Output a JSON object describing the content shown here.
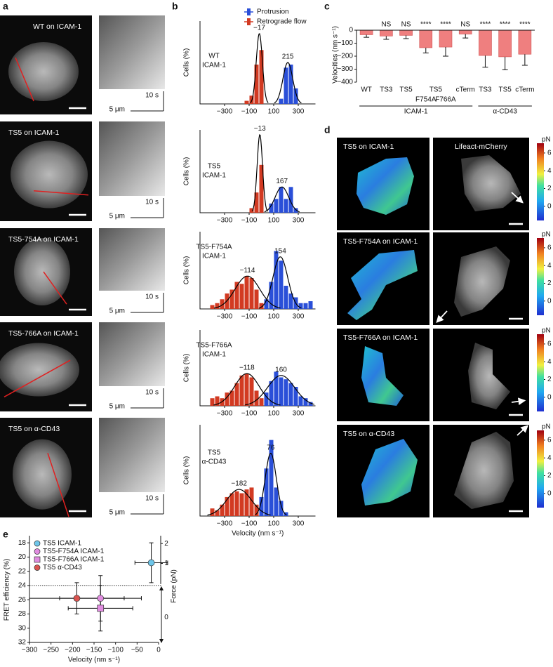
{
  "panel_labels": [
    "a",
    "b",
    "c",
    "d",
    "e"
  ],
  "panel_a": {
    "rows": [
      {
        "label": "WT on ICAM-1",
        "time_scale": "10 s",
        "length_scale": "5 μm"
      },
      {
        "label": "TS5 on ICAM-1",
        "time_scale": "10 s",
        "length_scale": "5 μm"
      },
      {
        "label": "TS5-754A on ICAM-1",
        "time_scale": "10 s",
        "length_scale": "5 μm"
      },
      {
        "label": "TS5-766A on ICAM-1",
        "time_scale": "10 s",
        "length_scale": "5 μm"
      },
      {
        "label": "TS5 on α-CD43",
        "time_scale": "10 s",
        "length_scale": "5 μm"
      }
    ]
  },
  "panel_d": {
    "right_label": "Lifeact-mCherry",
    "rows": [
      {
        "label": "TS5 on ICAM-1"
      },
      {
        "label": "TS5-F754A on ICAM-1"
      },
      {
        "label": "TS5-F766A on ICAM-1"
      },
      {
        "label": "TS5 on α-CD43"
      }
    ],
    "colorbar": {
      "unit": "pN",
      "lim": [
        -1.6,
        7.1
      ],
      "ticks": [
        6,
        4,
        2,
        0
      ]
    }
  },
  "chart_data": [
    {
      "type": "histogram",
      "label_lines": [
        "WT",
        "ICAM-1"
      ],
      "ylabel": "Cells (%)",
      "bins": [
        -460,
        -420,
        -380,
        -340,
        -300,
        -260,
        -220,
        -180,
        -140,
        -100,
        -60,
        -20,
        20,
        60,
        100,
        140,
        180,
        220,
        260,
        300,
        340,
        380,
        420
      ],
      "series": [
        {
          "name": "Protrusion",
          "color": "#2a4fd8",
          "values": [
            0,
            0,
            0,
            0,
            0,
            0,
            0,
            0,
            0,
            0,
            0,
            0,
            0,
            0,
            0,
            5,
            35,
            38,
            15,
            0,
            0,
            0
          ]
        },
        {
          "name": "Retrograde flow",
          "color": "#d23a22",
          "values": [
            0,
            0,
            0,
            0,
            0,
            0,
            0,
            0,
            3,
            8,
            38,
            52,
            0,
            0,
            0,
            0,
            0,
            0,
            0,
            0,
            0,
            0
          ]
        }
      ],
      "fits": [
        {
          "mean": -17,
          "label": "−17",
          "sd": 25,
          "amplitude": 68
        },
        {
          "mean": 215,
          "label": "215",
          "sd": 40,
          "amplitude": 40
        }
      ],
      "xlim": [
        -500,
        440
      ],
      "ylim": [
        0,
        80
      ],
      "xticks": [
        {
          "value": -300,
          "label": "−300"
        },
        {
          "value": -100,
          "label": "−100"
        },
        100,
        300
      ]
    },
    {
      "type": "histogram",
      "label_lines": [
        "TS5",
        "ICAM-1"
      ],
      "ylabel": "Cells (%)",
      "bins": [
        -460,
        -420,
        -380,
        -340,
        -300,
        -260,
        -220,
        -180,
        -140,
        -100,
        -60,
        -20,
        20,
        60,
        100,
        140,
        180,
        220,
        260,
        300,
        340,
        380,
        420
      ],
      "series": [
        {
          "color": "#2a4fd8",
          "values": [
            0,
            0,
            0,
            0,
            0,
            0,
            0,
            0,
            0,
            0,
            0,
            0,
            0,
            10,
            15,
            28,
            15,
            28,
            5,
            0,
            0,
            0
          ]
        },
        {
          "color": "#d23a22",
          "values": [
            0,
            0,
            0,
            0,
            0,
            0,
            0,
            0,
            0,
            5,
            22,
            52,
            0,
            0,
            0,
            0,
            0,
            0,
            0,
            0,
            0,
            0
          ]
        }
      ],
      "fits": [
        {
          "mean": -13,
          "label": "−13",
          "sd": 22,
          "amplitude": 85
        },
        {
          "mean": 167,
          "label": "167",
          "sd": 55,
          "amplitude": 28
        }
      ],
      "xlim": [
        -500,
        440
      ],
      "ylim": [
        0,
        90
      ],
      "xticks": [
        {
          "value": -300,
          "label": "−300"
        },
        {
          "value": -100,
          "label": "−100"
        },
        100,
        300
      ]
    },
    {
      "type": "histogram",
      "label_lines": [
        "TS5-F754A",
        "ICAM-1"
      ],
      "ylabel": "Cells (%)",
      "bins": [
        -460,
        -420,
        -380,
        -340,
        -300,
        -260,
        -220,
        -180,
        -140,
        -100,
        -60,
        -20,
        20,
        60,
        100,
        140,
        180,
        220,
        260,
        300,
        340,
        380,
        420
      ],
      "series": [
        {
          "color": "#2a4fd8",
          "values": [
            0,
            0,
            0,
            0,
            0,
            0,
            0,
            0,
            0,
            0,
            0,
            0,
            5,
            14,
            30,
            25,
            12,
            8,
            6,
            3,
            3,
            4
          ]
        },
        {
          "color": "#d23a22",
          "values": [
            0,
            2,
            3,
            5,
            8,
            10,
            14,
            13,
            17,
            16,
            10,
            3,
            0,
            0,
            0,
            0,
            0,
            0,
            0,
            0,
            0,
            0
          ]
        }
      ],
      "fits": [
        {
          "mean": -114,
          "label": "−114",
          "sd": 100,
          "amplitude": 17
        },
        {
          "mean": 154,
          "label": "154",
          "sd": 60,
          "amplitude": 27
        }
      ],
      "xlim": [
        -500,
        440
      ],
      "ylim": [
        0,
        40
      ],
      "xticks": [
        {
          "value": -300,
          "label": "−300"
        },
        {
          "value": -100,
          "label": "−100"
        },
        100,
        300
      ]
    },
    {
      "type": "histogram",
      "label_lines": [
        "TS5-F766A",
        "ICAM-1"
      ],
      "ylabel": "Cells (%)",
      "bins": [
        -460,
        -420,
        -380,
        -340,
        -300,
        -260,
        -220,
        -180,
        -140,
        -100,
        -60,
        -20,
        20,
        60,
        100,
        140,
        180,
        220,
        260,
        300,
        340,
        380,
        420
      ],
      "series": [
        {
          "color": "#2a4fd8",
          "values": [
            0,
            0,
            0,
            0,
            0,
            0,
            0,
            0,
            0,
            0,
            0,
            0,
            7,
            13,
            18,
            15,
            14,
            12,
            10,
            5,
            4,
            2
          ]
        },
        {
          "color": "#d23a22",
          "values": [
            0,
            4,
            5,
            4,
            7,
            8,
            12,
            16,
            17,
            15,
            8,
            4,
            0,
            0,
            0,
            0,
            0,
            0,
            0,
            0,
            0,
            0
          ]
        }
      ],
      "fits": [
        {
          "mean": -118,
          "label": "−118",
          "sd": 100,
          "amplitude": 17
        },
        {
          "mean": 160,
          "label": "160",
          "sd": 110,
          "amplitude": 16
        }
      ],
      "xlim": [
        -500,
        440
      ],
      "ylim": [
        0,
        40
      ],
      "xticks": [
        {
          "value": -300,
          "label": "−300"
        },
        {
          "value": -100,
          "label": "−100"
        },
        100,
        300
      ]
    },
    {
      "type": "histogram",
      "label_lines": [
        "TS5",
        "α-CD43"
      ],
      "ylabel": "Cells (%)",
      "xlabel": "Velocity (nm s⁻¹)",
      "bins": [
        -460,
        -420,
        -380,
        -340,
        -300,
        -260,
        -220,
        -180,
        -140,
        -100,
        -60,
        -20,
        20,
        60,
        100,
        140,
        180,
        220,
        260,
        300,
        340,
        380,
        420
      ],
      "series": [
        {
          "color": "#2a4fd8",
          "values": [
            0,
            0,
            0,
            0,
            0,
            0,
            0,
            0,
            0,
            0,
            0,
            10,
            25,
            40,
            15,
            8,
            2,
            0,
            0,
            0,
            0,
            0
          ]
        },
        {
          "color": "#d23a22",
          "values": [
            0,
            4,
            3,
            6,
            10,
            12,
            13,
            12,
            14,
            15,
            6,
            0,
            0,
            0,
            0,
            0,
            0,
            0,
            0,
            0,
            0,
            0
          ]
        }
      ],
      "fits": [
        {
          "mean": -182,
          "label": "−182",
          "sd": 100,
          "amplitude": 14
        },
        {
          "mean": 76,
          "label": "76",
          "sd": 45,
          "amplitude": 33
        }
      ],
      "xlim": [
        -500,
        440
      ],
      "ylim": [
        0,
        48
      ],
      "xticks": [
        {
          "value": -300,
          "label": "−300"
        },
        {
          "value": -100,
          "label": "−100"
        },
        100,
        300
      ]
    },
    {
      "type": "bar",
      "ylabel": "Velocities (nm s⁻¹)",
      "color": "#ef7f7f",
      "categories": [
        "WT",
        "TS3",
        "TS5",
        "F754A",
        "F766A",
        "cTerm",
        "TS3",
        "TS5",
        "cTerm"
      ],
      "values": [
        -35,
        -45,
        -40,
        -135,
        -130,
        -30,
        -195,
        -205,
        -185
      ],
      "errors": [
        20,
        25,
        25,
        40,
        70,
        30,
        90,
        100,
        85
      ],
      "significance": [
        null,
        "NS",
        "NS",
        "****",
        "****",
        "NS",
        "****",
        "****",
        "****"
      ],
      "subgroup": {
        "label": "TS5",
        "members": [
          3,
          4
        ]
      },
      "groups": [
        {
          "label": "ICAM-1",
          "start": 0,
          "end": 5
        },
        {
          "label": "α-CD43",
          "start": 6,
          "end": 8
        }
      ],
      "ylim": [
        -400,
        0
      ],
      "yticks": [
        0,
        {
          "value": -100,
          "label": "−100"
        },
        {
          "value": -200,
          "label": "−200"
        },
        {
          "value": -300,
          "label": "−300"
        },
        {
          "value": -400,
          "label": "−400"
        }
      ]
    },
    {
      "type": "scatter",
      "xlabel": "Velocity (nm s⁻¹)",
      "ylabel": "FRET efficiency (%)",
      "y2label": "Force (pN)",
      "y_reversed": true,
      "threshold": 24,
      "series": [
        {
          "name": "TS5 ICAM-1",
          "color": "#6ec6ea",
          "marker": "circle",
          "x": [
            -17
          ],
          "y": [
            20.8
          ],
          "xerr": [
            38
          ],
          "yerr": [
            2.8
          ]
        },
        {
          "name": "TS5-F754A ICAM-1",
          "color": "#e08ce0",
          "marker": "circle",
          "x": [
            -135
          ],
          "y": [
            25.8
          ],
          "xerr": [
            95
          ],
          "yerr": [
            3.2
          ]
        },
        {
          "name": "TS5-F766A ICAM-1",
          "color": "#e08ce0",
          "marker": "square",
          "x": [
            -135
          ],
          "y": [
            27.2
          ],
          "xerr": [
            75
          ],
          "yerr": [
            3.2
          ]
        },
        {
          "name": "TS5 α-CD43",
          "color": "#d9534f",
          "marker": "circle",
          "x": [
            -190
          ],
          "y": [
            25.8
          ],
          "xerr": [
            110
          ],
          "yerr": [
            2.2
          ]
        }
      ],
      "xlim": [
        -300,
        0
      ],
      "ylim": [
        17,
        32
      ],
      "xticks": [
        {
          "value": -300,
          "label": "−300"
        },
        {
          "value": -250,
          "label": "−250"
        },
        {
          "value": -200,
          "label": "−200"
        },
        {
          "value": -150,
          "label": "−150"
        },
        {
          "value": -100,
          "label": "−100"
        },
        {
          "value": -50,
          "label": "−50"
        },
        0
      ],
      "yticks": [
        18,
        20,
        22,
        24,
        26,
        28,
        30,
        32
      ],
      "force_ticks": [
        {
          "value": 2,
          "fret": 18.1
        },
        {
          "value": 1,
          "fret": 20.9
        },
        {
          "value": 0,
          "fret": 28.5
        }
      ]
    }
  ]
}
